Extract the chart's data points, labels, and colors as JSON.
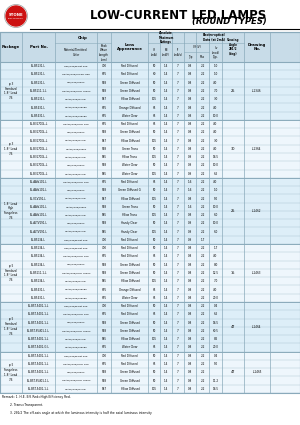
{
  "title": "LOW-CURRENT LED LAMPS (ROUND TYPES)",
  "col_positions": [
    0,
    22,
    55,
    97,
    111,
    148,
    160,
    172,
    184,
    196,
    209,
    222,
    244,
    270,
    300
  ],
  "header_bg": "#c8dce8",
  "table_bg_even": "#ddeef8",
  "table_bg_odd": "#eef6fc",
  "border": "#8aaabb",
  "sections": [
    {
      "package": "φ 3\nStandard\n1.8° Lead\n7.6",
      "rows": [
        [
          "BL-B5131-L",
          "GaP/GaP/Bright Red",
          "700",
          "Red Diffused",
          "50",
          "1.4",
          "7",
          "0.8",
          "2.2",
          "1.0"
        ],
        [
          "BL-B5131-L",
          "GaAsP/GaP/H.R.Eff. Red",
          "635",
          "Red Diffused",
          "60",
          "1.4",
          "7",
          "0.8",
          "2.2",
          "1.0"
        ],
        [
          "BL-B5131-L",
          "GaP/GaP/Green",
          "568",
          "Green Diffused",
          "50",
          "1.4",
          "7",
          "0.8",
          "2.2",
          "4.0"
        ],
        [
          "BL-B5111-1-L",
          "GaAsP/GaP/H.Eff. Green",
          "568",
          "Green Diffused",
          "50",
          "1.4",
          "7",
          "0.8",
          "2.2",
          "7.0"
        ],
        [
          "BL-B5131-L",
          "GaAsP/GaP/Yellow",
          "587",
          "Yellow Diffused",
          "105",
          "1.4",
          "7",
          "0.8",
          "2.2",
          "3.0"
        ],
        [
          "BL-B5431-L",
          "GaAsP/GaP/Orange",
          "635",
          "Orange Diffused",
          "65",
          "1.4",
          "7",
          "0.8",
          "2.2",
          "4.0"
        ],
        [
          "BL-B5431-L",
          "GaAsP/GaP/Orange",
          "635",
          "Water Clear",
          "65",
          "1.4",
          "7",
          "0.8",
          "2.2",
          "10.0"
        ]
      ],
      "viewing": "25",
      "drawing": "L-1346"
    },
    {
      "package": "φ 3\n1.8° Lead\n7.6",
      "rows": [
        [
          "BL-B3170GL-L",
          "GaAsP/GaP/H.Eff. Red",
          "635",
          "Red Diffused",
          "65",
          "1.4",
          "7",
          "0.8",
          "2.2",
          "4.0"
        ],
        [
          "BL-B3170GL-L",
          "GaP/GaP/Green",
          "568",
          "Green Diffused",
          "50",
          "1.4",
          "7",
          "0.8",
          "2.2",
          "4.0"
        ],
        [
          "BL-B3170GL-L",
          "GaAsP/GaP/Yellow",
          "587",
          "Yellow Diffused",
          "105",
          "1.4",
          "7",
          "0.8",
          "2.2",
          "3.0"
        ],
        [
          "BL-B3170GL-L",
          "GaAsP/GaP/Green",
          "568",
          "Green Trans",
          "50",
          "1.4",
          "7",
          "0.8",
          "2.2",
          "4.0"
        ],
        [
          "BL-B3170GL-L",
          "GaAsP/GaP/Yellow",
          "585",
          "Yellow Trans",
          "105",
          "1.4",
          "7",
          "0.9",
          "2.2",
          "16.5"
        ],
        [
          "BL-B3170GL-L",
          "GaP/GaP/Green",
          "568",
          "Water Clear",
          "50",
          "1.4",
          "7",
          "0.9",
          "2.2",
          "10.0"
        ],
        [
          "BL-B3170GL-L",
          "GaAsP/GaP/Yellow",
          "585",
          "Water Clear",
          "105",
          "1.4",
          "7",
          "0.9",
          "2.2",
          "6.5"
        ]
      ],
      "viewing": "30",
      "drawing": "L-1364"
    },
    {
      "package": "1.8° Lead\nHigh\nFlangeless\n7.6",
      "rows": [
        [
          "BL-AAIV101-L",
          "GaAsP/GaP/H.Eff. Red",
          "635",
          "Red Diffused",
          "65",
          "1.4",
          "7",
          "1.6",
          "2.2",
          "4.0"
        ],
        [
          "BL-AAIV101-L",
          "GaP/GaP/Green",
          "568",
          "Green Diffused G",
          "50",
          "1.4",
          "7",
          "1.6",
          "2.2",
          "1.0"
        ],
        [
          "BL-VCV191-L",
          "GaAsP/GaP/Yellow",
          "587",
          "Yellow Diffused",
          "105",
          "1.4",
          "7",
          "0.8",
          "2.2",
          "5.0"
        ],
        [
          "BL-AAIV101-L",
          "GaAsP/GaP/Green",
          "568",
          "Green Trans",
          "50",
          "1.4",
          "7",
          "1.6",
          "2.2",
          "10.0"
        ],
        [
          "BL-AAIV101-L",
          "GaAsP/GaP/Yellow",
          "585",
          "Yellow Trans",
          "105",
          "1.4",
          "7",
          "0.8",
          "2.2",
          "6.0"
        ],
        [
          "BL-ALTV191-L",
          "GaP/GaP/Green",
          "568",
          "Handy Clear",
          "50",
          "1.4",
          "7",
          "0.9",
          "2.2",
          "10.0"
        ],
        [
          "BL-ALTV191-L",
          "GaAsP/GaP/Yellow",
          "585",
          "Handy Clear",
          "105",
          "1.4",
          "7",
          "0.9",
          "2.2",
          "6.0"
        ],
        [
          "BL-B5134-L",
          "GaP/GaP/Bright Red",
          "700",
          "Red Diffused",
          "50",
          "1.4",
          "7",
          "0.9",
          "1.7",
          ""
        ]
      ],
      "viewing": "25",
      "drawing": "L-1462"
    },
    {
      "package": "φ 5\nStandard\n1.8° Lead\n7.6",
      "rows": [
        [
          "BL-B5134-L",
          "GaP/GaP/Bright Red",
          "700",
          "Red Diffused",
          "50",
          "1.4",
          "7",
          "0.8",
          "2.2",
          "1.7"
        ],
        [
          "BL-B5134-L",
          "GaAsP/GaP/H.Eff. Red",
          "635",
          "Red Diffused",
          "65",
          "1.4",
          "7",
          "0.8",
          "2.2",
          "4.0"
        ],
        [
          "BL-B5134-L",
          "GaP/GaP/Green",
          "568",
          "Green Diffused",
          "50",
          "1.4",
          "7",
          "0.8",
          "2.2",
          "8.0"
        ],
        [
          "BL-B5111-1-L",
          "GaAsP/GaP/H.Eff. Green",
          "568",
          "Green Diffused",
          "50",
          "1.4",
          "7",
          "0.8",
          "2.2",
          "12.5"
        ],
        [
          "BL-B5134-L",
          "GaAsP/GaP/Yellow",
          "585",
          "Yellow Diffused",
          "105",
          "1.4",
          "7",
          "0.8",
          "2.2",
          "7.0"
        ],
        [
          "BL-B5431-L",
          "GaAsP/GaP/Orange",
          "635",
          "Orange Diffused",
          "65",
          "1.4",
          "7",
          "0.8",
          "2.2",
          "4.0"
        ],
        [
          "BL-B5431-L",
          "GaAsP/GaP/Orange",
          "635",
          "Water Clear",
          "65",
          "1.4",
          "7",
          "0.8",
          "2.2",
          "20.0"
        ]
      ],
      "viewing": "15",
      "drawing": "L-1463"
    },
    {
      "package": "φ 5\nStandard\n1.8° Lead\n7.6",
      "rows": [
        [
          "BL-B5T-5401-1-L",
          "GaP/GaP/Bright Red",
          "700",
          "Red Diffused",
          "50",
          "1.4",
          "7",
          "0.8",
          "2.2",
          "0.4"
        ],
        [
          "BL-B5T-5401-1-L",
          "GaAsP/GaP/H.Eff. Red",
          "635",
          "Red Diffused",
          "65",
          "1.4",
          "7",
          "0.8",
          "2.2",
          "6.5"
        ],
        [
          "BL-B5T-5401-1-L",
          "GaP/GaP/Green",
          "568",
          "Green Diffused",
          "50",
          "1.4",
          "7",
          "0.8",
          "2.2",
          "16.5"
        ],
        [
          "BL-B5T-S5401-1-L",
          "GaAsP/GaP/H.Eff. Green",
          "568",
          "Green Diffused",
          "50",
          "1.4",
          "7",
          "0.8",
          "2.2",
          "60.5"
        ],
        [
          "BL-B5T-5401-1-L",
          "GaAsP/GaP/Yellow",
          "585",
          "Yellow Diffused",
          "105",
          "1.4",
          "7",
          "0.8",
          "2.2",
          "8.5"
        ],
        [
          "BL-B5T-5401-G-L",
          "GaAsP/GaP/Orange",
          "635",
          "Water Clear",
          "65",
          "1.4",
          "7",
          "0.8",
          "2.2",
          "20.0"
        ]
      ],
      "viewing": "47",
      "drawing": "L-1464"
    },
    {
      "package": "φ 5\nFlangeless\n1.8° Lead\n7.6",
      "rows": [
        [
          "BL-B5T-5401-1-L",
          "GaP/GaP/Bright Red",
          "700",
          "Red Diffused",
          "50",
          "1.4",
          "7",
          "0.8",
          "2.2",
          "0.4"
        ],
        [
          "BL-B5T-5401-1-L",
          "GaAsP/GaP/H.Eff. Red",
          "635",
          "Red Diffused",
          "65",
          "1.4",
          "7",
          "0.8",
          "2.2",
          "5.0"
        ],
        [
          "BL-B5T-5401-1-L",
          "GaP/GaP/Green",
          "568",
          "Green Diffused",
          "50",
          "1.4",
          "7",
          "0.8",
          "2.2",
          ""
        ],
        [
          "BL-B5T-S5401-1-L",
          "GaAsP/GaP/H.Eff. Green",
          "568",
          "Green Diffused",
          "50",
          "1.4",
          "7",
          "0.8",
          "2.2",
          "11.2"
        ],
        [
          "BL-B5T-5401-1-L",
          "GaAsP/GaP/Yellow",
          "587",
          "Yellow Diffused",
          "105",
          "1.4",
          "7",
          "0.8",
          "2.2",
          "16.5"
        ]
      ],
      "viewing": "47",
      "drawing": "L-1465"
    }
  ],
  "notes": [
    "Remark: 1. H.E. Eff. Red=High Efficiency Red.",
    "        2. Trans=Transparent.",
    "        3. 2θ1/2 The off-axis angle at which the luminous intensity is half the axial luminous intensity."
  ]
}
